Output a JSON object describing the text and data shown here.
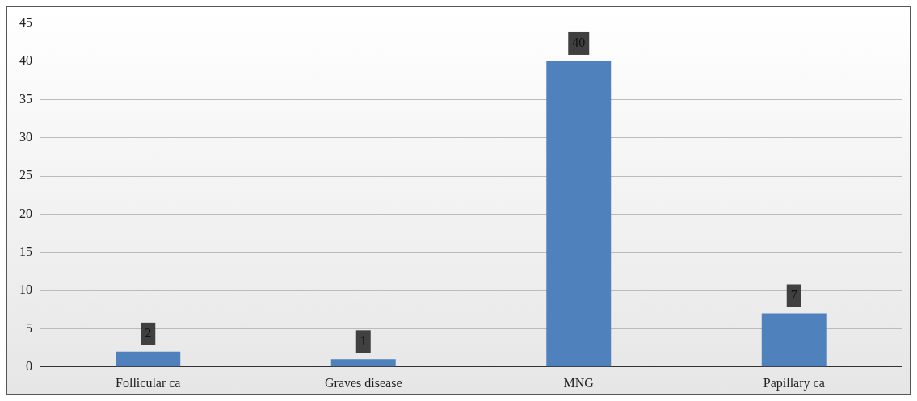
{
  "chart_data": {
    "type": "bar",
    "categories": [
      "Follicular ca",
      "Graves disease",
      "MNG",
      "Papillary ca"
    ],
    "values": [
      2,
      1,
      40,
      7
    ],
    "color": "#4f81bd",
    "ylim": [
      0,
      45
    ],
    "yticks": [
      0,
      5,
      10,
      15,
      20,
      25,
      30,
      35,
      40,
      45
    ],
    "grid": "y",
    "data_labels": true
  }
}
